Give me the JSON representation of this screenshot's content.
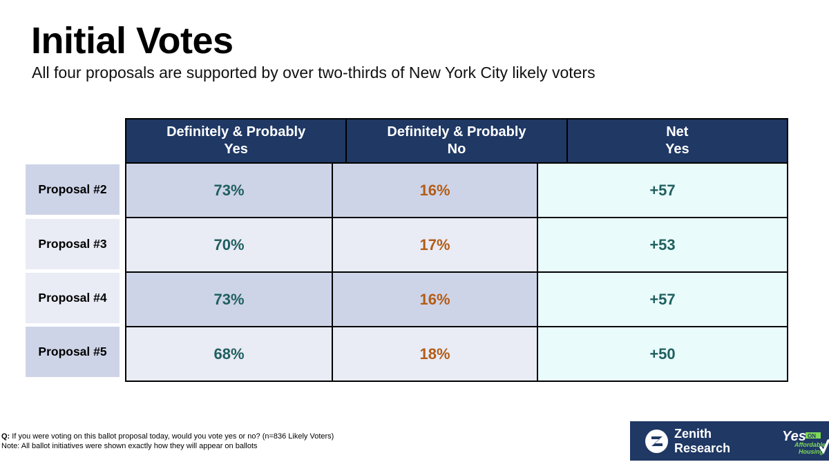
{
  "title": "Initial Votes",
  "subtitle": "All four proposals are supported by over two-thirds of New York City likely voters",
  "table": {
    "headers": [
      "Definitely & Probably\nYes",
      "Definitely & Probably\nNo",
      "Net\nYes"
    ],
    "rows": [
      {
        "label": "Proposal #2",
        "yes": "73%",
        "no": "16%",
        "net": "+57"
      },
      {
        "label": "Proposal #3",
        "yes": "70%",
        "no": "17%",
        "net": "+53"
      },
      {
        "label": "Proposal #4",
        "yes": "73%",
        "no": "16%",
        "net": "+57"
      },
      {
        "label": "Proposal #5",
        "yes": "68%",
        "no": "18%",
        "net": "+50"
      }
    ]
  },
  "footnotes": {
    "q_prefix": "Q:",
    "question": " If you were voting on this ballot proposal today, would you vote yes or no? (n=836 Likely Voters)",
    "note": "Note: All ballot initiatives were shown exactly how they will appear on ballots"
  },
  "branding": {
    "company": "Zenith Research",
    "campaign_logo": "Yes on Affordable Housing"
  },
  "colors": {
    "header_bg": "#1f3864",
    "yes_text": "#1f5f5f",
    "no_text": "#b35c16",
    "net_bg": "#e9fbfb"
  }
}
